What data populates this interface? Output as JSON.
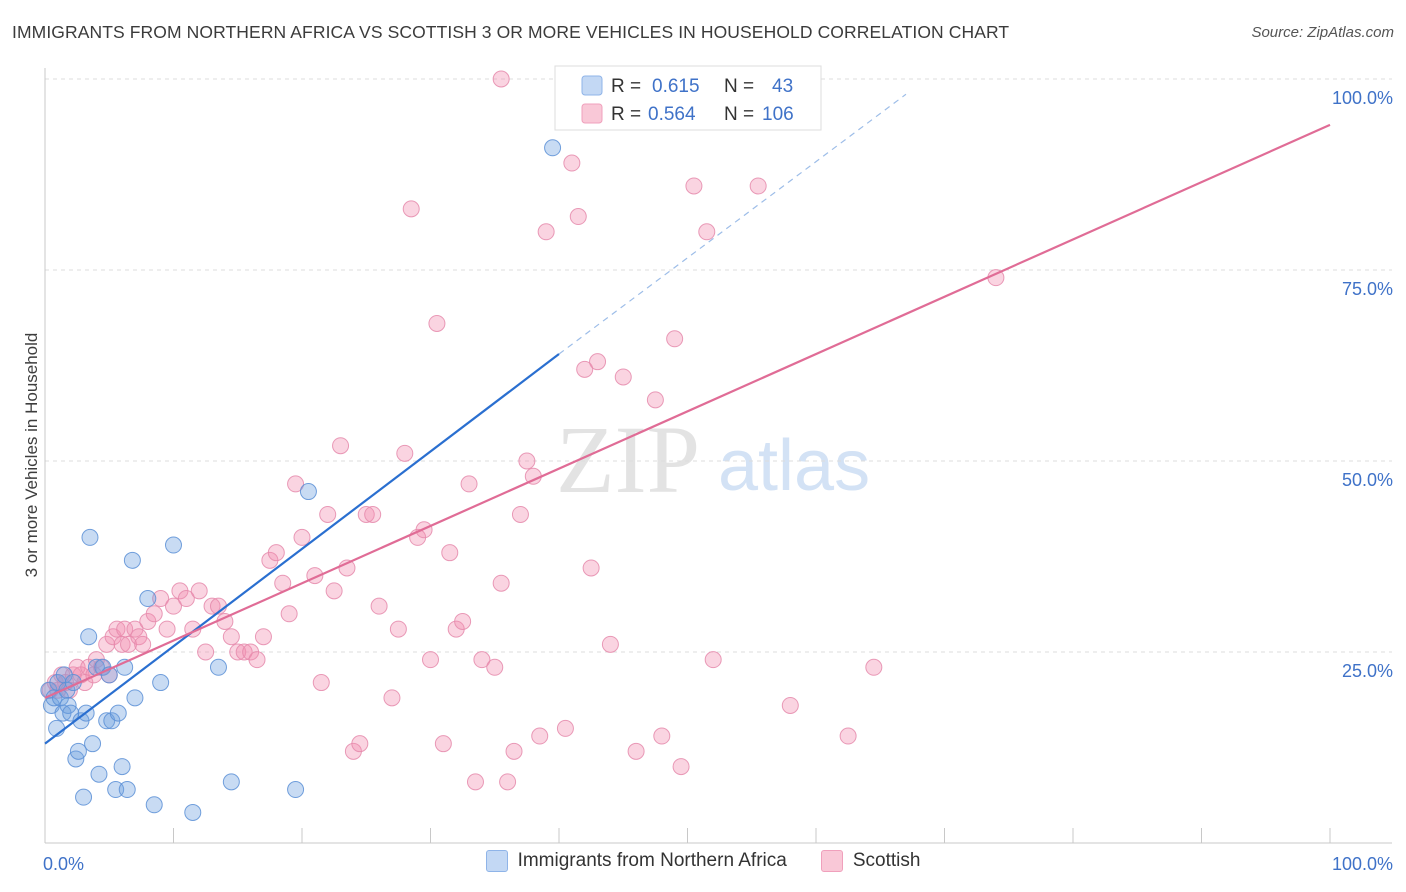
{
  "title": "IMMIGRANTS FROM NORTHERN AFRICA VS SCOTTISH 3 OR MORE VEHICLES IN HOUSEHOLD CORRELATION CHART",
  "source": "Source: ZipAtlas.com",
  "watermark": {
    "zip": "ZIP",
    "atlas": "atlas"
  },
  "colors": {
    "blue": "#6fa0e0",
    "blue_line": "#2a6fd0",
    "pink": "#f28fb0",
    "pink_line": "#e06c96",
    "tick": "#3f72c8"
  },
  "chart_data": {
    "type": "scatter",
    "title": "IMMIGRANTS FROM NORTHERN AFRICA VS SCOTTISH 3 OR MORE VEHICLES IN HOUSEHOLD CORRELATION CHART",
    "xlabel": "",
    "ylabel": "3 or more Vehicles in Household",
    "xlim": [
      0,
      100
    ],
    "ylim": [
      0,
      100
    ],
    "x_tick_labels": [
      "0.0%",
      "100.0%"
    ],
    "y_ticks": [
      25,
      50,
      75,
      100
    ],
    "y_tick_labels": [
      "25.0%",
      "50.0%",
      "75.0%",
      "100.0%"
    ],
    "grid": true,
    "legend": {
      "position": "top-center",
      "entries": [
        {
          "series": "Immigrants from Northern Africa",
          "r_label": "R =",
          "r": "0.615",
          "n_label": "N =",
          "n": "43"
        },
        {
          "series": "Scottish",
          "r_label": "R =",
          "r": "0.564",
          "n_label": "N =",
          "n": "106"
        }
      ]
    },
    "series": [
      {
        "name": "Immigrants from Northern Africa",
        "color": "#6fa0e0",
        "trend": {
          "x0": 0,
          "y0": 13,
          "x1": 40,
          "y1": 64,
          "dash_to_x": 67,
          "dash_to_y": 98
        },
        "points": [
          [
            0.3,
            20
          ],
          [
            0.5,
            18
          ],
          [
            0.7,
            19
          ],
          [
            0.9,
            15
          ],
          [
            1.0,
            21
          ],
          [
            1.2,
            19
          ],
          [
            1.4,
            17
          ],
          [
            1.5,
            22
          ],
          [
            1.7,
            20
          ],
          [
            1.8,
            18
          ],
          [
            2.0,
            17
          ],
          [
            2.2,
            21
          ],
          [
            2.4,
            11
          ],
          [
            2.6,
            12
          ],
          [
            2.8,
            16
          ],
          [
            3.0,
            6
          ],
          [
            3.2,
            17
          ],
          [
            3.4,
            27
          ],
          [
            3.5,
            40
          ],
          [
            3.7,
            13
          ],
          [
            4.0,
            23
          ],
          [
            4.2,
            9
          ],
          [
            4.5,
            23
          ],
          [
            4.8,
            16
          ],
          [
            5.0,
            22
          ],
          [
            5.2,
            16
          ],
          [
            5.5,
            7
          ],
          [
            5.7,
            17
          ],
          [
            6.0,
            10
          ],
          [
            6.2,
            23
          ],
          [
            6.4,
            7
          ],
          [
            6.8,
            37
          ],
          [
            7.0,
            19
          ],
          [
            8.0,
            32
          ],
          [
            8.5,
            5
          ],
          [
            9.0,
            21
          ],
          [
            10.0,
            39
          ],
          [
            11.5,
            4
          ],
          [
            13.5,
            23
          ],
          [
            14.5,
            8
          ],
          [
            19.5,
            7
          ],
          [
            20.5,
            46
          ],
          [
            39.5,
            91
          ]
        ]
      },
      {
        "name": "Scottish",
        "color": "#f28fb0",
        "trend": {
          "x0": 0,
          "y0": 19,
          "x1": 100,
          "y1": 94
        },
        "points": [
          [
            0.4,
            20
          ],
          [
            0.8,
            21
          ],
          [
            1.0,
            20
          ],
          [
            1.3,
            22
          ],
          [
            1.6,
            21
          ],
          [
            1.9,
            20
          ],
          [
            2.2,
            22
          ],
          [
            2.5,
            23
          ],
          [
            2.8,
            22
          ],
          [
            3.1,
            21
          ],
          [
            3.4,
            23
          ],
          [
            3.8,
            22
          ],
          [
            4.0,
            24
          ],
          [
            4.4,
            23
          ],
          [
            4.8,
            26
          ],
          [
            5.0,
            22
          ],
          [
            5.3,
            27
          ],
          [
            5.6,
            28
          ],
          [
            6.0,
            26
          ],
          [
            6.2,
            28
          ],
          [
            6.5,
            26
          ],
          [
            7.0,
            28
          ],
          [
            7.3,
            27
          ],
          [
            7.6,
            26
          ],
          [
            8.0,
            29
          ],
          [
            8.5,
            30
          ],
          [
            9.0,
            32
          ],
          [
            9.5,
            28
          ],
          [
            10.0,
            31
          ],
          [
            10.5,
            33
          ],
          [
            11.0,
            32
          ],
          [
            11.5,
            28
          ],
          [
            12.0,
            33
          ],
          [
            12.5,
            25
          ],
          [
            13.0,
            31
          ],
          [
            13.5,
            31
          ],
          [
            14.0,
            29
          ],
          [
            14.5,
            27
          ],
          [
            15.0,
            25
          ],
          [
            15.5,
            25
          ],
          [
            16.0,
            25
          ],
          [
            16.5,
            24
          ],
          [
            17.0,
            27
          ],
          [
            17.5,
            37
          ],
          [
            18.0,
            38
          ],
          [
            18.5,
            34
          ],
          [
            19.0,
            30
          ],
          [
            19.5,
            47
          ],
          [
            20.0,
            40
          ],
          [
            21.0,
            35
          ],
          [
            21.5,
            21
          ],
          [
            22.0,
            43
          ],
          [
            22.5,
            33
          ],
          [
            23.0,
            52
          ],
          [
            23.5,
            36
          ],
          [
            24.0,
            12
          ],
          [
            24.5,
            13
          ],
          [
            25.0,
            43
          ],
          [
            25.5,
            43
          ],
          [
            26.0,
            31
          ],
          [
            27.0,
            19
          ],
          [
            27.5,
            28
          ],
          [
            28.0,
            51
          ],
          [
            28.5,
            83
          ],
          [
            29.0,
            40
          ],
          [
            29.5,
            41
          ],
          [
            30.0,
            24
          ],
          [
            30.5,
            68
          ],
          [
            31.0,
            13
          ],
          [
            31.5,
            38
          ],
          [
            32.0,
            28
          ],
          [
            32.5,
            29
          ],
          [
            33.0,
            47
          ],
          [
            33.5,
            8
          ],
          [
            34.0,
            24
          ],
          [
            35.0,
            23
          ],
          [
            35.5,
            34
          ],
          [
            36.0,
            8
          ],
          [
            36.5,
            12
          ],
          [
            37.0,
            43
          ],
          [
            37.5,
            50
          ],
          [
            38.0,
            48
          ],
          [
            38.5,
            14
          ],
          [
            39.0,
            80
          ],
          [
            40.5,
            15
          ],
          [
            41.0,
            89
          ],
          [
            41.5,
            82
          ],
          [
            42.0,
            62
          ],
          [
            42.5,
            36
          ],
          [
            43.0,
            63
          ],
          [
            44.0,
            26
          ],
          [
            45.0,
            61
          ],
          [
            46.0,
            12
          ],
          [
            47.5,
            58
          ],
          [
            48.0,
            14
          ],
          [
            49.0,
            66
          ],
          [
            49.5,
            10
          ],
          [
            50.5,
            86
          ],
          [
            51.5,
            80
          ],
          [
            52.0,
            24
          ],
          [
            55.5,
            86
          ],
          [
            58.0,
            18
          ],
          [
            62.5,
            14
          ],
          [
            64.5,
            23
          ],
          [
            74.0,
            74
          ],
          [
            35.5,
            100
          ]
        ]
      }
    ]
  }
}
